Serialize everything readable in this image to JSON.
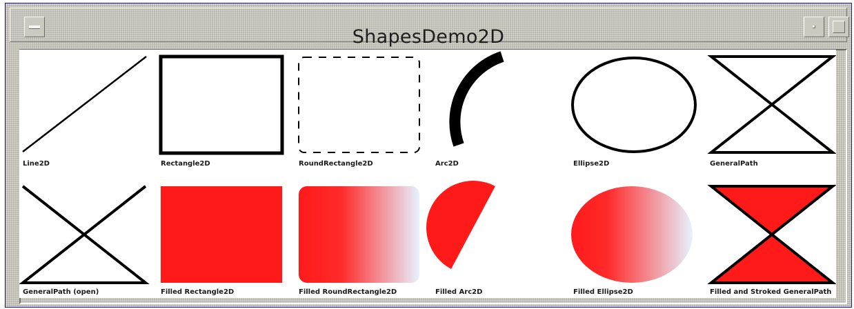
{
  "window": {
    "title": "ShapesDemo2D"
  },
  "colors": {
    "fill": "#ff1a1a",
    "stroke": "#000000",
    "gradient_end": "#e6f2ff"
  },
  "icons": {
    "menu": "window-menu-icon",
    "minimize": "minimize-icon",
    "maximize": "maximize-icon"
  },
  "shapes": {
    "line2d": "Line2D",
    "rectangle2d": "Rectangle2D",
    "roundrectangle2d": "RoundRectangle2D",
    "arc2d": "Arc2D",
    "ellipse2d": "Ellipse2D",
    "generalpath": "GeneralPath",
    "generalpath_open": "GeneralPath (open)",
    "filled_rectangle2d": "Filled Rectangle2D",
    "filled_roundrectangle2d": "Filled RoundRectangle2D",
    "filled_arc2d": "Filled Arc2D",
    "filled_ellipse2d": "Filled Ellipse2D",
    "filled_stroked_generalpath": "Filled and Stroked GeneralPath"
  }
}
